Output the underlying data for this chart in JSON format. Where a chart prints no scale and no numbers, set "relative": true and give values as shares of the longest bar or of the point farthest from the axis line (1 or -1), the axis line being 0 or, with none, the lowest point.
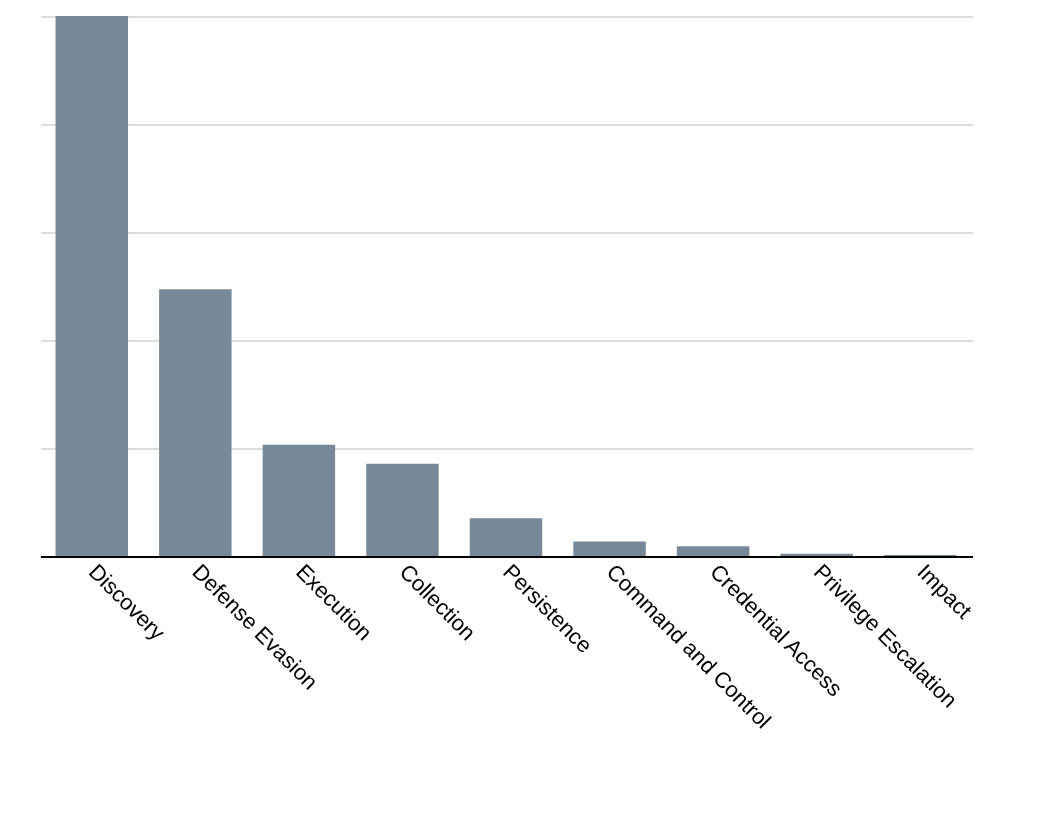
{
  "chart_data": {
    "type": "bar",
    "relative": true,
    "categories": [
      "Discovery",
      "Defense Evasion",
      "Execution",
      "Collection",
      "Persistence",
      "Command and Control",
      "Credential Access",
      "Privilege Escalation",
      "Impact"
    ],
    "values": [
      1,
      0.494,
      0.206,
      0.171,
      0.07,
      0.027,
      0.018,
      0.004,
      0.002
    ],
    "color": "#778899",
    "grid": "y"
  }
}
